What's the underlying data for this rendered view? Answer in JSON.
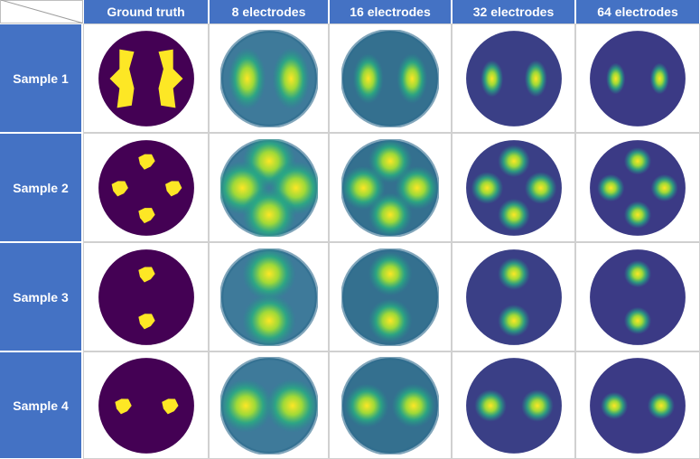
{
  "columns": [
    "Ground truth",
    "8 electrodes",
    "16 electrodes",
    "32 electrodes",
    "64 electrodes"
  ],
  "rows": [
    "Sample 1",
    "Sample 2",
    "Sample 3",
    "Sample 4"
  ],
  "colors": {
    "header_bg": "#4472c4",
    "header_text": "#ffffff",
    "background_purple": "#440154",
    "inclusion_yellow": "#fde725",
    "map_base": "#3b528b"
  },
  "samples": [
    {
      "pattern": "two-vertical-arcs-left-right"
    },
    {
      "pattern": "four-blobs-top-left-right-bottom"
    },
    {
      "pattern": "two-blobs-top-bottom"
    },
    {
      "pattern": "two-blobs-left-right"
    }
  ]
}
